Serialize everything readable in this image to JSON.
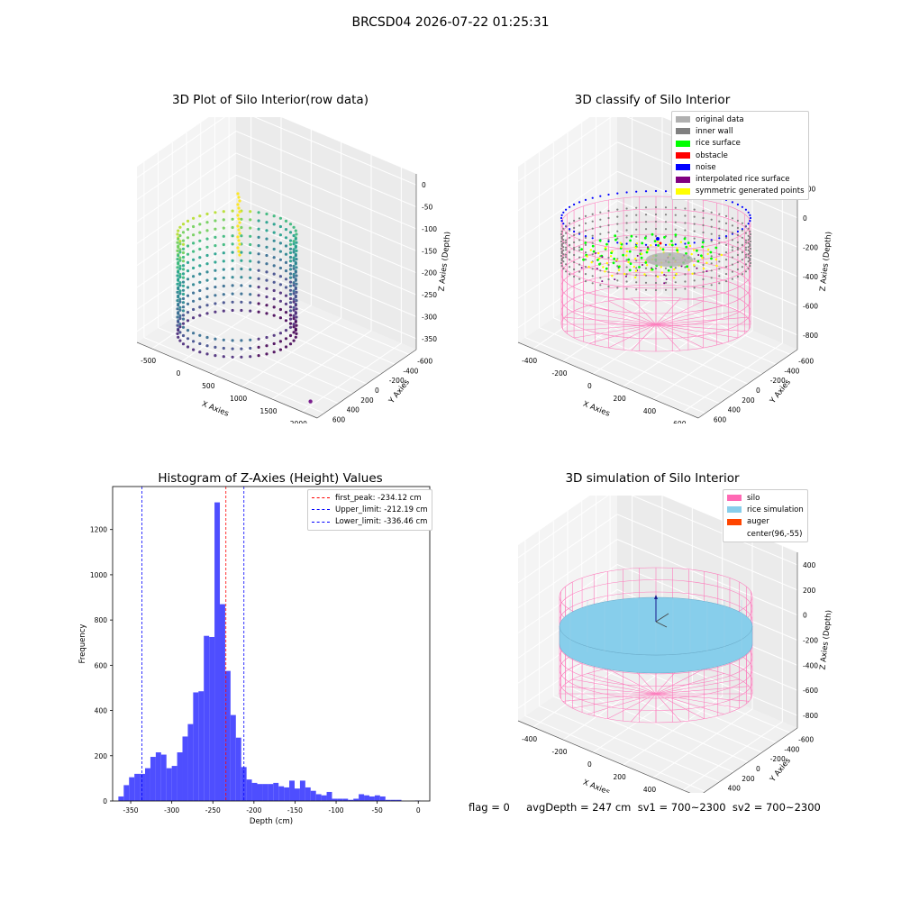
{
  "suptitle": "BRCSD04 2026-07-22 01:25:31",
  "footer": "flag = 0     avgDepth = 247 cm  sv1 = 700~2300  sv2 = 700~2300",
  "chart_data": [
    {
      "type": "scatter3d",
      "title": "3D Plot of Silo Interior(row data)",
      "xlabel": "X Axies",
      "ylabel": "Y Axies",
      "zlabel": "Z Axies (Depth)",
      "x_ticks": [
        "-500",
        "0",
        "500",
        "1000",
        "1500",
        "2000"
      ],
      "y_ticks": [
        "600",
        "400",
        "200",
        "0",
        "-200",
        "-400",
        "-600"
      ],
      "z_ticks": [
        "0",
        "-50",
        "-100",
        "-150",
        "-200",
        "-250",
        "-300",
        "-350"
      ],
      "colormap": "viridis",
      "highlight_color": "#fde725",
      "outlier": {
        "x": 1950,
        "y": -580,
        "z": -330
      }
    },
    {
      "type": "scatter3d",
      "title": "3D classify of Silo Interior",
      "xlabel": "X Axies",
      "ylabel": "Y Axies",
      "zlabel": "Z Axies (Depth)",
      "x_ticks": [
        "-400",
        "-200",
        "0",
        "200",
        "400",
        "600"
      ],
      "y_ticks": [
        "600",
        "400",
        "200",
        "0",
        "-200",
        "-400",
        "-600"
      ],
      "z_ticks": [
        "200",
        "0",
        "-200",
        "-400",
        "-600",
        "-800"
      ],
      "legend": [
        {
          "label": "original data",
          "color": "#b0b0b0"
        },
        {
          "label": "inner wall",
          "color": "#808080"
        },
        {
          "label": "rice surface",
          "color": "#00ff00"
        },
        {
          "label": "obstacle",
          "color": "#ff0000"
        },
        {
          "label": "noise",
          "color": "#0000ff"
        },
        {
          "label": "interpolated rice surface",
          "color": "#800080"
        },
        {
          "label": "symmetric generated points",
          "color": "#ffff00"
        }
      ],
      "silo_color": "#ff69b4"
    },
    {
      "type": "bar",
      "title": "Histogram of Z-Axies (Height) Values",
      "xlabel": "Depth (cm)",
      "ylabel": "Frequency",
      "bar_color": "#4444ff",
      "xlim": [
        -372,
        14
      ],
      "ylim": [
        0,
        1390
      ],
      "x_ticks": [
        -350,
        -300,
        -250,
        -200,
        -150,
        -100,
        -50,
        0
      ],
      "y_ticks": [
        0,
        200,
        400,
        600,
        800,
        1000,
        1200
      ],
      "bins": [
        {
          "x0": -365,
          "x1": -358.5,
          "v": 20
        },
        {
          "x0": -358.5,
          "x1": -352,
          "v": 70
        },
        {
          "x0": -352,
          "x1": -345.5,
          "v": 105
        },
        {
          "x0": -345.5,
          "x1": -339,
          "v": 120
        },
        {
          "x0": -339,
          "x1": -332.5,
          "v": 120
        },
        {
          "x0": -332.5,
          "x1": -326,
          "v": 145
        },
        {
          "x0": -326,
          "x1": -319.5,
          "v": 195
        },
        {
          "x0": -319.5,
          "x1": -313,
          "v": 215
        },
        {
          "x0": -313,
          "x1": -306.5,
          "v": 205
        },
        {
          "x0": -306.5,
          "x1": -300,
          "v": 145
        },
        {
          "x0": -300,
          "x1": -293.5,
          "v": 155
        },
        {
          "x0": -293.5,
          "x1": -287,
          "v": 215
        },
        {
          "x0": -287,
          "x1": -280.5,
          "v": 285
        },
        {
          "x0": -280.5,
          "x1": -274,
          "v": 340
        },
        {
          "x0": -274,
          "x1": -267.5,
          "v": 480
        },
        {
          "x0": -267.5,
          "x1": -261,
          "v": 485
        },
        {
          "x0": -261,
          "x1": -254.5,
          "v": 730
        },
        {
          "x0": -254.5,
          "x1": -248,
          "v": 725
        },
        {
          "x0": -248,
          "x1": -241.5,
          "v": 1320
        },
        {
          "x0": -241.5,
          "x1": -235,
          "v": 870
        },
        {
          "x0": -235,
          "x1": -228.5,
          "v": 575
        },
        {
          "x0": -228.5,
          "x1": -222,
          "v": 380
        },
        {
          "x0": -222,
          "x1": -215.5,
          "v": 280
        },
        {
          "x0": -215.5,
          "x1": -209,
          "v": 150
        },
        {
          "x0": -209,
          "x1": -202.5,
          "v": 95
        },
        {
          "x0": -202.5,
          "x1": -196,
          "v": 80
        },
        {
          "x0": -196,
          "x1": -189.5,
          "v": 75
        },
        {
          "x0": -189.5,
          "x1": -183,
          "v": 75
        },
        {
          "x0": -183,
          "x1": -176.5,
          "v": 75
        },
        {
          "x0": -176.5,
          "x1": -170,
          "v": 80
        },
        {
          "x0": -170,
          "x1": -163.5,
          "v": 65
        },
        {
          "x0": -163.5,
          "x1": -157,
          "v": 60
        },
        {
          "x0": -157,
          "x1": -150.5,
          "v": 90
        },
        {
          "x0": -150.5,
          "x1": -144,
          "v": 55
        },
        {
          "x0": -144,
          "x1": -137.5,
          "v": 90
        },
        {
          "x0": -137.5,
          "x1": -131,
          "v": 60
        },
        {
          "x0": -131,
          "x1": -124.5,
          "v": 45
        },
        {
          "x0": -124.5,
          "x1": -118,
          "v": 30
        },
        {
          "x0": -118,
          "x1": -111.5,
          "v": 25
        },
        {
          "x0": -111.5,
          "x1": -105,
          "v": 40
        },
        {
          "x0": -105,
          "x1": -98.5,
          "v": 10
        },
        {
          "x0": -98.5,
          "x1": -92,
          "v": 10
        },
        {
          "x0": -92,
          "x1": -85.5,
          "v": 10
        },
        {
          "x0": -85.5,
          "x1": -79,
          "v": 5
        },
        {
          "x0": -79,
          "x1": -72.5,
          "v": 10
        },
        {
          "x0": -72.5,
          "x1": -66,
          "v": 30
        },
        {
          "x0": -66,
          "x1": -59.5,
          "v": 25
        },
        {
          "x0": -59.5,
          "x1": -53,
          "v": 20
        },
        {
          "x0": -53,
          "x1": -46.5,
          "v": 25
        },
        {
          "x0": -46.5,
          "x1": -40,
          "v": 20
        },
        {
          "x0": -40,
          "x1": -33.5,
          "v": 5
        },
        {
          "x0": -33.5,
          "x1": -27,
          "v": 5
        },
        {
          "x0": -27,
          "x1": -20.5,
          "v": 5
        },
        {
          "x0": -4,
          "x1": 2.5,
          "v": 2
        }
      ],
      "vlines": [
        {
          "label": "first_peak: -234.12 cm",
          "x": -234.12,
          "color": "#ff0000"
        },
        {
          "label": "Upper_limit: -212.19 cm",
          "x": -212.19,
          "color": "#0000ff"
        },
        {
          "label": "Lower_limit: -336.46 cm",
          "x": -336.46,
          "color": "#0000ff"
        }
      ]
    },
    {
      "type": "surface3d",
      "title": "3D simulation of Silo Interior",
      "xlabel": "X Axies",
      "ylabel": "Y Axies",
      "zlabel": "Z Axies (Depth)",
      "x_ticks": [
        "-400",
        "-200",
        "0",
        "200",
        "400",
        "600"
      ],
      "y_ticks": [
        "600",
        "400",
        "200",
        "0",
        "-200",
        "-400",
        "-600"
      ],
      "z_ticks": [
        "400",
        "200",
        "0",
        "-200",
        "-400",
        "-600",
        "-800"
      ],
      "legend": [
        {
          "label": "silo",
          "color": "#ff69b4"
        },
        {
          "label": "rice simulation",
          "color": "#87ceeb"
        },
        {
          "label": "auger",
          "color": "#ff4500"
        },
        {
          "label": "center(96,-55)",
          "color": "#ffffff"
        }
      ]
    }
  ]
}
